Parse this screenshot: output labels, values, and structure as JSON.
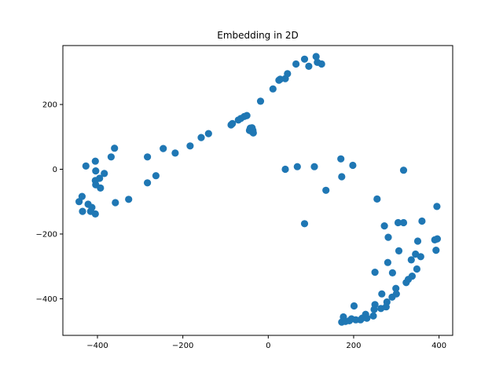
{
  "chart_data": {
    "type": "scatter",
    "title": "Embedding in 2D",
    "xlabel": "",
    "ylabel": "",
    "xlim": [
      -481,
      432
    ],
    "ylim": [
      -513,
      382
    ],
    "x_ticks": [
      -400,
      -200,
      0,
      200,
      400
    ],
    "y_ticks": [
      -400,
      -200,
      0,
      200
    ],
    "x_tick_labels": [
      "−400",
      "−200",
      "0",
      "200",
      "400"
    ],
    "y_tick_labels": [
      "−400",
      "−200",
      "0",
      "200"
    ],
    "grid": false,
    "color": "#1f77b4",
    "series": [
      {
        "points": [
          [
            -443,
            -100
          ],
          [
            -436,
            -84
          ],
          [
            -435,
            -130
          ],
          [
            -427,
            10
          ],
          [
            -422,
            -108
          ],
          [
            -416,
            -130
          ],
          [
            -413,
            -118
          ],
          [
            -405,
            -138
          ],
          [
            -405,
            25
          ],
          [
            -405,
            -35
          ],
          [
            -404,
            -48
          ],
          [
            -404,
            -5
          ],
          [
            -395,
            -28
          ],
          [
            -393,
            -58
          ],
          [
            -384,
            -13
          ],
          [
            -368,
            38
          ],
          [
            -360,
            65
          ],
          [
            -358,
            -103
          ],
          [
            -327,
            -93
          ],
          [
            -283,
            38
          ],
          [
            -283,
            -42
          ],
          [
            -263,
            -20
          ],
          [
            -246,
            64
          ],
          [
            -218,
            50
          ],
          [
            -183,
            72
          ],
          [
            -157,
            98
          ],
          [
            -140,
            110
          ],
          [
            -87,
            137
          ],
          [
            -84,
            141
          ],
          [
            -70,
            152
          ],
          [
            -64,
            157
          ],
          [
            -56,
            163
          ],
          [
            -50,
            166
          ],
          [
            -44,
            120
          ],
          [
            -42,
            127
          ],
          [
            -38,
            128
          ],
          [
            -37,
            115
          ],
          [
            -36,
            120
          ],
          [
            -35,
            112
          ],
          [
            -18,
            210
          ],
          [
            11,
            248
          ],
          [
            25,
            275
          ],
          [
            28,
            278
          ],
          [
            40,
            280
          ],
          [
            45,
            295
          ],
          [
            65,
            325
          ],
          [
            85,
            340
          ],
          [
            95,
            318
          ],
          [
            112,
            348
          ],
          [
            115,
            330
          ],
          [
            125,
            325
          ],
          [
            40,
            0
          ],
          [
            68,
            8
          ],
          [
            108,
            8
          ],
          [
            135,
            -65
          ],
          [
            85,
            -168
          ],
          [
            170,
            32
          ],
          [
            172,
            -23
          ],
          [
            198,
            12
          ],
          [
            172,
            -472
          ],
          [
            176,
            -456
          ],
          [
            181,
            -470
          ],
          [
            190,
            -468
          ],
          [
            195,
            -462
          ],
          [
            201,
            -422
          ],
          [
            205,
            -465
          ],
          [
            216,
            -465
          ],
          [
            220,
            -460
          ],
          [
            228,
            -448
          ],
          [
            231,
            -460
          ],
          [
            246,
            -453
          ],
          [
            248,
            -433
          ],
          [
            250,
            -418
          ],
          [
            250,
            -318
          ],
          [
            255,
            -92
          ],
          [
            264,
            -430
          ],
          [
            266,
            -385
          ],
          [
            272,
            -175
          ],
          [
            276,
            -425
          ],
          [
            278,
            -410
          ],
          [
            280,
            -288
          ],
          [
            281,
            -210
          ],
          [
            290,
            -395
          ],
          [
            291,
            -320
          ],
          [
            299,
            -368
          ],
          [
            300,
            -385
          ],
          [
            304,
            -165
          ],
          [
            306,
            -252
          ],
          [
            317,
            -165
          ],
          [
            317,
            -3
          ],
          [
            323,
            -350
          ],
          [
            328,
            -340
          ],
          [
            335,
            -280
          ],
          [
            337,
            -330
          ],
          [
            345,
            -262
          ],
          [
            348,
            -308
          ],
          [
            350,
            -222
          ],
          [
            357,
            -270
          ],
          [
            360,
            -160
          ],
          [
            390,
            -218
          ],
          [
            393,
            -250
          ],
          [
            395,
            -115
          ],
          [
            396,
            -215
          ]
        ]
      }
    ]
  }
}
